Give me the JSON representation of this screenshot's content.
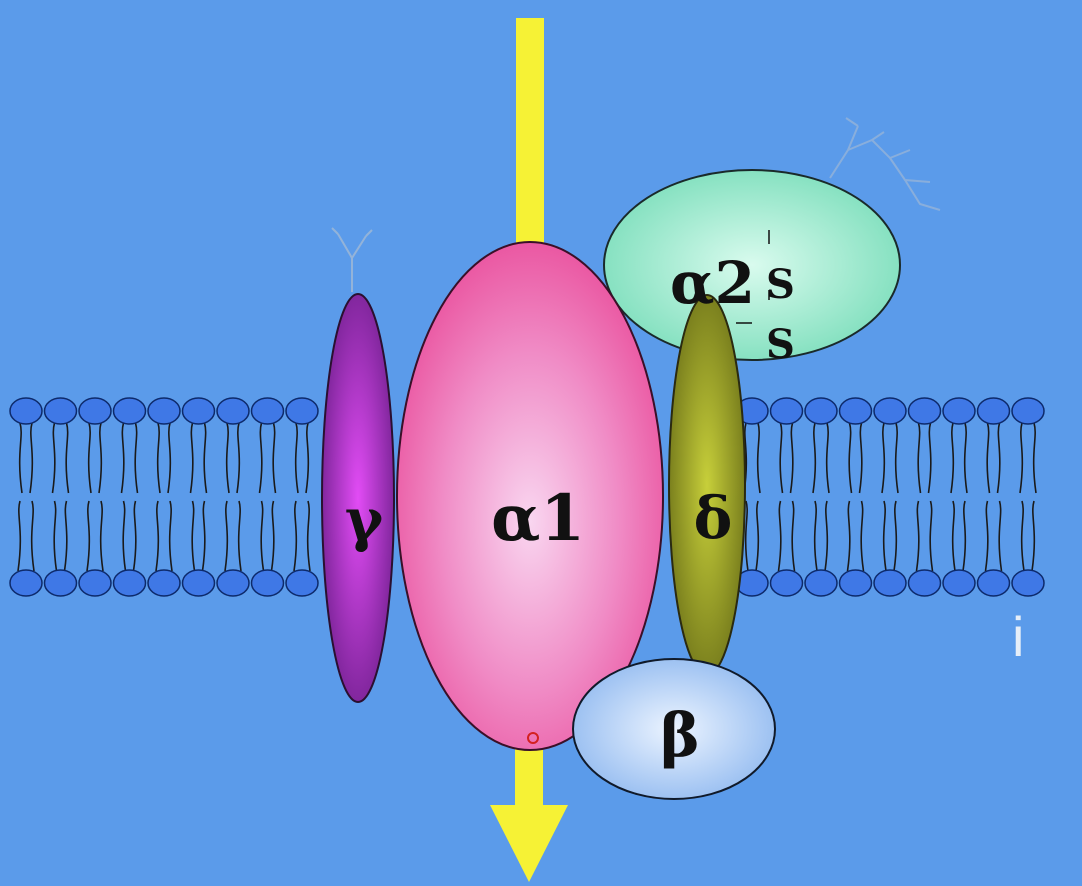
{
  "background_color": "#5b9bea",
  "subunits": {
    "alpha1": {
      "label": "α1",
      "color": "#ee5aa6"
    },
    "alpha2": {
      "label": "α2",
      "color": "#7fe6c1"
    },
    "gamma": {
      "label": "γ",
      "color": "#9a2fc4"
    },
    "delta": {
      "label": "δ",
      "color": "#9aa528"
    },
    "beta": {
      "label": "β",
      "color": "#9cc4f2"
    }
  },
  "disulfide_labels": [
    "S",
    "S"
  ],
  "stray_mark": "i",
  "ion_flow_color": "#f6f235",
  "membrane_head_color": "#3f78e6",
  "membrane_tail_color": "#1a1a1a"
}
